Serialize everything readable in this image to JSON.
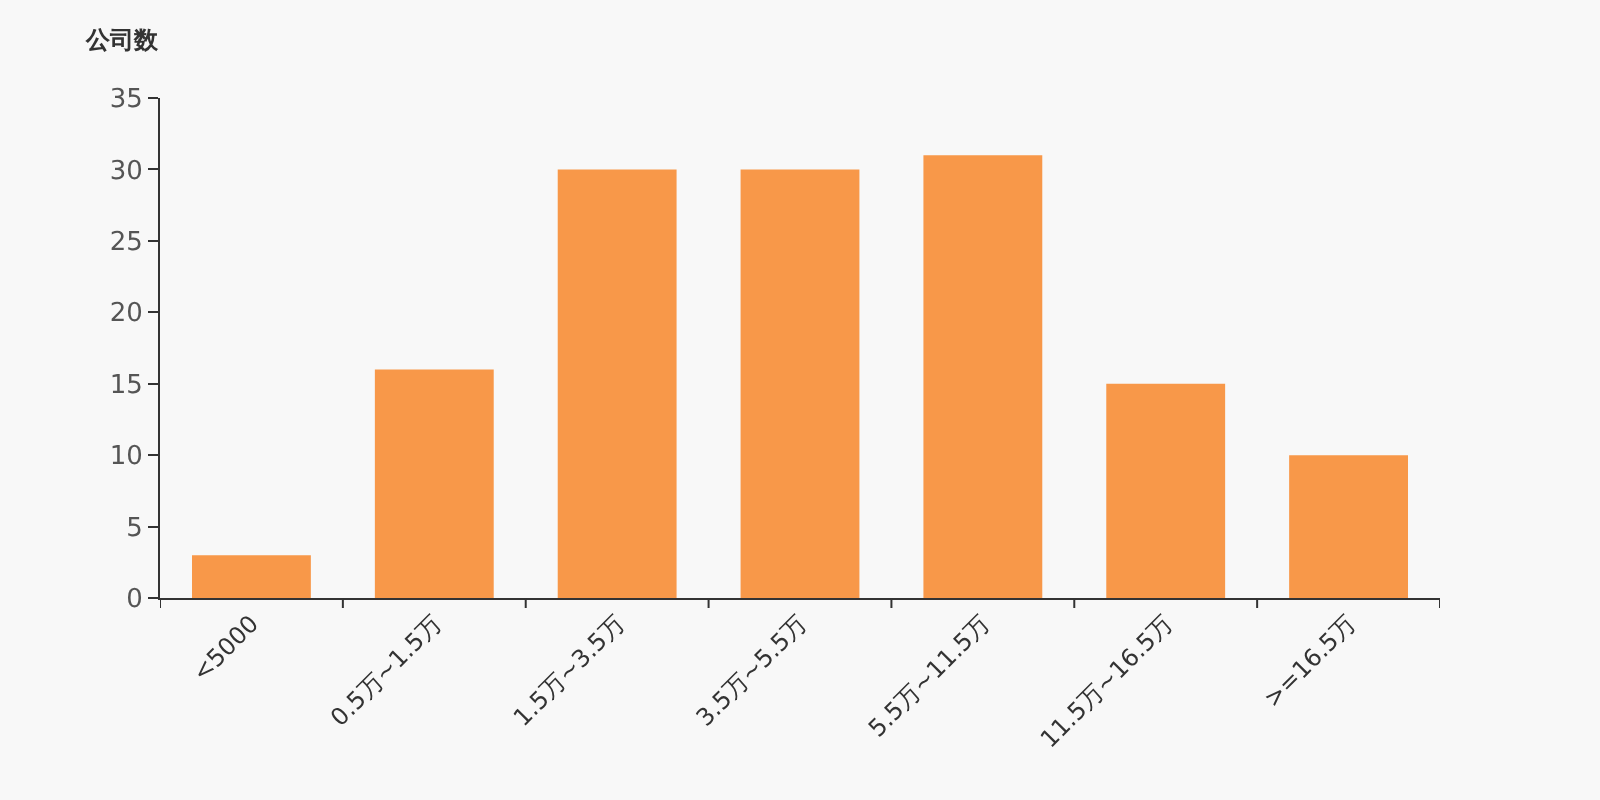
{
  "chart_data": {
    "type": "bar",
    "ylabel": "公司数",
    "categories": [
      "<5000",
      "0.5万~1.5万",
      "1.5万~3.5万",
      "3.5万~5.5万",
      "5.5万~11.5万",
      "11.5万~16.5万",
      ">=16.5万"
    ],
    "series": [
      {
        "color": "#f89849",
        "values": [
          3,
          16,
          30,
          30,
          31,
          15,
          10
        ]
      }
    ],
    "ylim": [
      0,
      35
    ],
    "yticks": [
      0,
      5,
      10,
      15,
      20,
      25,
      30,
      35
    ]
  }
}
